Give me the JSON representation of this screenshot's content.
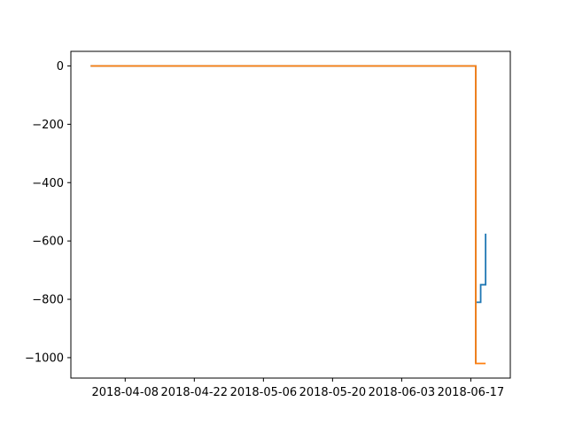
{
  "chart_data": {
    "type": "line",
    "title": "",
    "xlabel": "",
    "ylabel": "",
    "x_axis_kind": "date",
    "xlim": [
      "2018-03-28",
      "2018-06-25"
    ],
    "ylim": [
      -1070,
      50
    ],
    "grid": false,
    "legend": "none",
    "x_ticks": [
      "2018-04-08",
      "2018-04-22",
      "2018-05-06",
      "2018-05-20",
      "2018-06-03",
      "2018-06-17"
    ],
    "y_ticks": [
      0,
      -200,
      -400,
      -600,
      -800,
      -1000
    ],
    "y_tick_labels": [
      "0",
      "−200",
      "−400",
      "−600",
      "−800",
      "−1000"
    ],
    "series": [
      {
        "color": "#1f77b4",
        "step": true,
        "points": [
          [
            "2018-04-01",
            0
          ],
          [
            "2018-06-18",
            0
          ],
          [
            "2018-06-18",
            -1020
          ],
          [
            "2018-06-18",
            -810
          ],
          [
            "2018-06-19",
            -810
          ],
          [
            "2018-06-19",
            -750
          ],
          [
            "2018-06-20",
            -750
          ],
          [
            "2018-06-20",
            -600
          ],
          [
            "2018-06-20",
            -590
          ],
          [
            "2018-06-20",
            -575
          ]
        ]
      },
      {
        "color": "#ff7f0e",
        "step": true,
        "points": [
          [
            "2018-04-01",
            0
          ],
          [
            "2018-06-18",
            0
          ],
          [
            "2018-06-18",
            -1020
          ],
          [
            "2018-06-20",
            -1020
          ]
        ]
      }
    ]
  }
}
